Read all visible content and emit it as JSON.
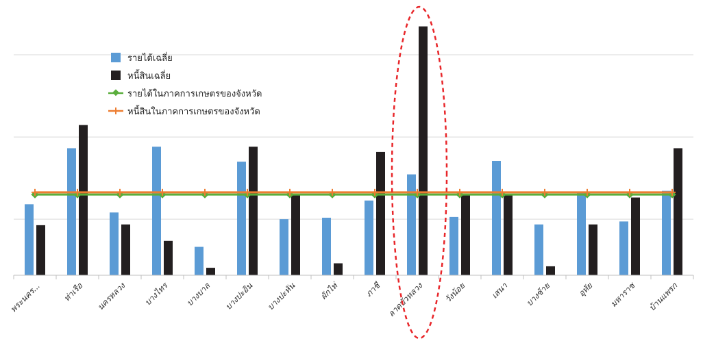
{
  "chart_data": {
    "type": "bar",
    "categories": [
      "พระนคร...",
      "ท่าเรือ",
      "นครหลวง",
      "บางไทร",
      "บางบาล",
      "บางปะอิน",
      "บางปะหัน",
      "ผักไห่",
      "ภาชี",
      "ลาดบัวหลวง",
      "วังน้อย",
      "เสนา",
      "บางซ้าย",
      "อุทัย",
      "มหาราช",
      "บ้านแพรก"
    ],
    "series": [
      {
        "name": "รายได้เฉลี่ย",
        "kind": "bar",
        "color": "#5b9bd5",
        "values": [
          95,
          170,
          84,
          172,
          38,
          152,
          75,
          77,
          100,
          135,
          78,
          153,
          68,
          110,
          72,
          113
        ]
      },
      {
        "name": "หนี้สินเฉลี่ย",
        "kind": "bar",
        "color": "#231f20",
        "values": [
          67,
          201,
          68,
          46,
          10,
          172,
          108,
          16,
          165,
          333,
          108,
          108,
          12,
          68,
          104,
          170
        ]
      },
      {
        "name": "รายได้ในภาคการเกษตรของจังหวัด",
        "kind": "line",
        "color": "#5aae3c",
        "values": [
          108,
          108,
          108,
          108,
          108,
          108,
          108,
          108,
          108,
          108,
          108,
          108,
          108,
          108,
          108,
          108
        ]
      },
      {
        "name": "หนี้สินในภาคการเกษตรของจังหวัด",
        "kind": "line",
        "color": "#ed7d31",
        "values": [
          111,
          111,
          111,
          111,
          111,
          111,
          111,
          111,
          111,
          111,
          111,
          111,
          111,
          111,
          111,
          111
        ]
      }
    ],
    "ylim": [
      0,
      350
    ],
    "grid": true,
    "legend_position": "top-left",
    "highlight_category": "ลาดบัวหลวง",
    "highlight_color": "#e8262a",
    "title": "",
    "xlabel": "",
    "ylabel": ""
  }
}
